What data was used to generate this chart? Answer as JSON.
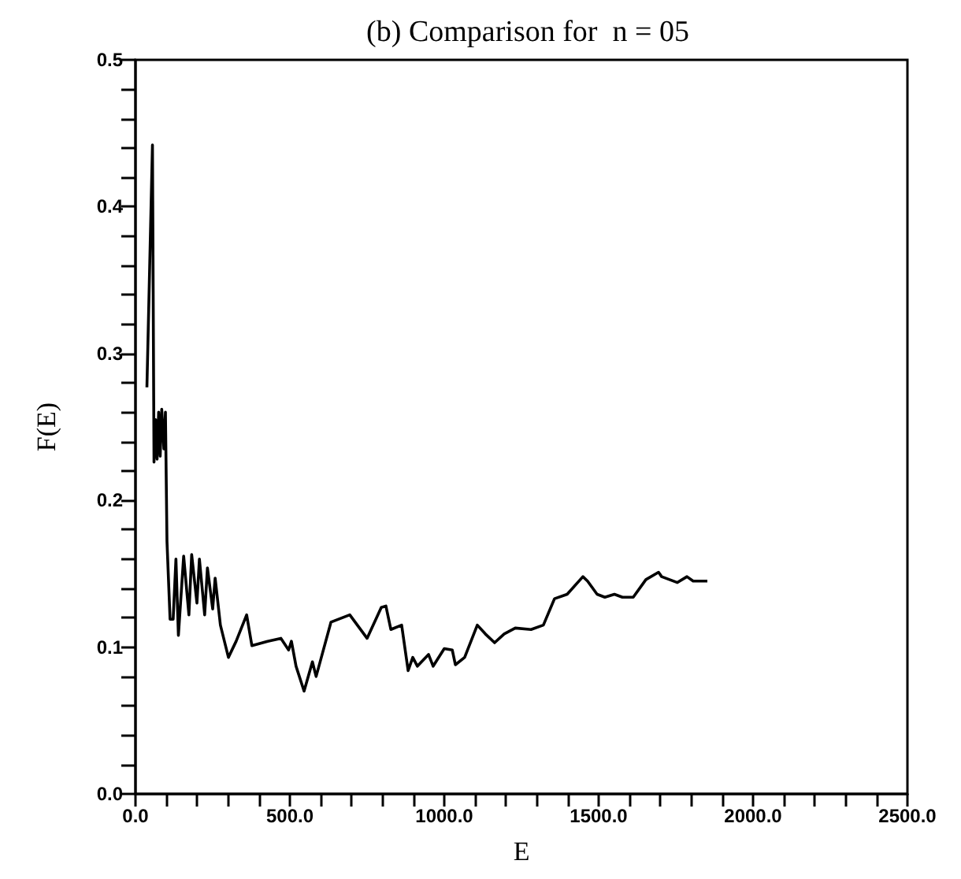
{
  "chart_data": {
    "type": "line",
    "title": "(b) Comparison for  n = 05",
    "xlabel": "E",
    "ylabel": "F(E)",
    "x": [
      37,
      55,
      60,
      65,
      70,
      75,
      80,
      85,
      92,
      97,
      102,
      112,
      122,
      131,
      139,
      156,
      173,
      182,
      199,
      207,
      224,
      233,
      250,
      258,
      275,
      301,
      326,
      360,
      377,
      428,
      471,
      496,
      505,
      520,
      546,
      573,
      585,
      633,
      694,
      750,
      796,
      811,
      827,
      862,
      883,
      898,
      913,
      949,
      964,
      1000,
      1026,
      1036,
      1066,
      1107,
      1133,
      1163,
      1194,
      1230,
      1281,
      1321,
      1357,
      1398,
      1449,
      1464,
      1495,
      1520,
      1551,
      1577,
      1612,
      1653,
      1694,
      1704,
      1755,
      1786,
      1806,
      1852
    ],
    "series": [
      {
        "color": "#000000",
        "values": [
          0.277,
          0.442,
          0.226,
          0.255,
          0.228,
          0.26,
          0.23,
          0.262,
          0.235,
          0.26,
          0.172,
          0.119,
          0.119,
          0.16,
          0.108,
          0.162,
          0.122,
          0.163,
          0.13,
          0.16,
          0.122,
          0.154,
          0.126,
          0.147,
          0.115,
          0.093,
          0.104,
          0.122,
          0.101,
          0.104,
          0.106,
          0.098,
          0.104,
          0.087,
          0.07,
          0.09,
          0.08,
          0.117,
          0.122,
          0.106,
          0.127,
          0.128,
          0.112,
          0.115,
          0.084,
          0.093,
          0.087,
          0.095,
          0.087,
          0.099,
          0.098,
          0.088,
          0.093,
          0.115,
          0.109,
          0.103,
          0.109,
          0.113,
          0.112,
          0.115,
          0.133,
          0.136,
          0.148,
          0.145,
          0.136,
          0.134,
          0.136,
          0.134,
          0.134,
          0.146,
          0.151,
          0.148,
          0.144,
          0.148,
          0.145,
          0.145
        ]
      }
    ],
    "xlim": [
      0,
      2500
    ],
    "xticks": [
      {
        "value": 0,
        "label": "0.0"
      },
      {
        "value": 100,
        "label": null
      },
      {
        "value": 200,
        "label": null
      },
      {
        "value": 300,
        "label": null
      },
      {
        "value": 400,
        "label": null
      },
      {
        "value": 500,
        "label": "500.0"
      },
      {
        "value": 600,
        "label": null
      },
      {
        "value": 700,
        "label": null
      },
      {
        "value": 800,
        "label": null
      },
      {
        "value": 900,
        "label": null
      },
      {
        "value": 1000,
        "label": "1000.0"
      },
      {
        "value": 1100,
        "label": null
      },
      {
        "value": 1200,
        "label": null
      },
      {
        "value": 1300,
        "label": null
      },
      {
        "value": 1400,
        "label": null
      },
      {
        "value": 1500,
        "label": "1500.0"
      },
      {
        "value": 1600,
        "label": null
      },
      {
        "value": 1700,
        "label": null
      },
      {
        "value": 1800,
        "label": null
      },
      {
        "value": 1900,
        "label": null
      },
      {
        "value": 2000,
        "label": "2000.0"
      },
      {
        "value": 2100,
        "label": null
      },
      {
        "value": 2200,
        "label": null
      },
      {
        "value": 2300,
        "label": null
      },
      {
        "value": 2400,
        "label": null
      },
      {
        "value": 2500,
        "label": "2500.0"
      }
    ],
    "ylim": [
      0,
      0.5
    ],
    "yticks": [
      {
        "value": 0,
        "label": "0.0"
      },
      {
        "value": 0.02,
        "label": null
      },
      {
        "value": 0.04,
        "label": null
      },
      {
        "value": 0.06,
        "label": null
      },
      {
        "value": 0.08,
        "label": null
      },
      {
        "value": 0.1,
        "label": "0.1"
      },
      {
        "value": 0.12,
        "label": null
      },
      {
        "value": 0.14,
        "label": null
      },
      {
        "value": 0.16,
        "label": null
      },
      {
        "value": 0.18,
        "label": null
      },
      {
        "value": 0.2,
        "label": "0.2"
      },
      {
        "value": 0.22,
        "label": null
      },
      {
        "value": 0.24,
        "label": null
      },
      {
        "value": 0.26,
        "label": null
      },
      {
        "value": 0.28,
        "label": null
      },
      {
        "value": 0.3,
        "label": "0.3"
      },
      {
        "value": 0.32,
        "label": null
      },
      {
        "value": 0.34,
        "label": null
      },
      {
        "value": 0.36,
        "label": null
      },
      {
        "value": 0.38,
        "label": null
      },
      {
        "value": 0.4,
        "label": "0.4"
      },
      {
        "value": 0.42,
        "label": null
      },
      {
        "value": 0.44,
        "label": null
      },
      {
        "value": 0.46,
        "label": null
      },
      {
        "value": 0.48,
        "label": null
      },
      {
        "value": 0.5,
        "label": "0.5"
      }
    ],
    "grid": false,
    "marker": "none",
    "line_style": "solid"
  }
}
